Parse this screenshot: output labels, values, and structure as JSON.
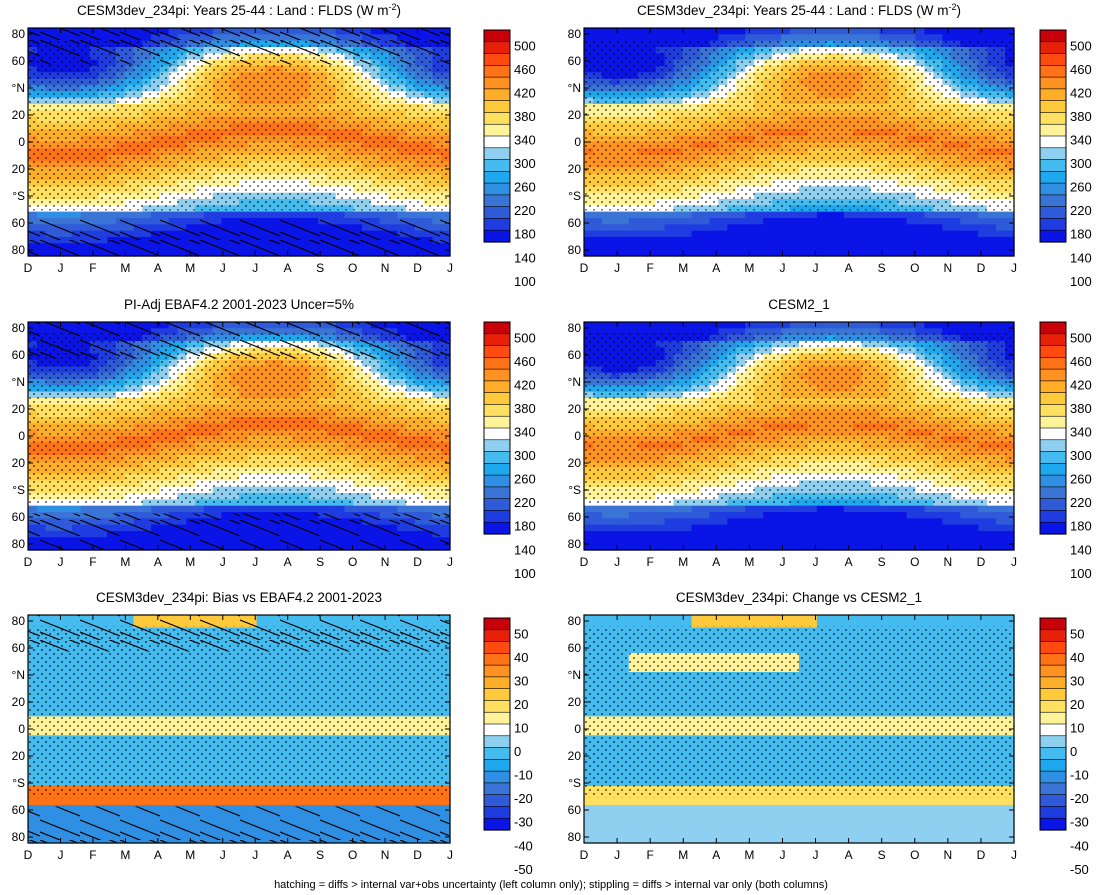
{
  "footnote": "hatching = diffs > internal var+obs uncertainty (left column only); stippling = diffs > internal var only (both columns)",
  "colors": {
    "abs_scale": [
      "#0a14e6",
      "#1f3ce0",
      "#2f5ad8",
      "#3a75d6",
      "#2f8fe3",
      "#1ea8ee",
      "#45bcef",
      "#8fd0f0",
      "#ffffff",
      "#fff39a",
      "#ffe060",
      "#ffc93c",
      "#ffae2a",
      "#ff9220",
      "#ff7316",
      "#ff4a10",
      "#e8200a",
      "#c8000a"
    ],
    "diff_scale": [
      "#0a14e6",
      "#1f3ce0",
      "#2f5ad8",
      "#3a75d6",
      "#2f8fe3",
      "#1ea8ee",
      "#45bcef",
      "#8fd0f0",
      "#ffffff",
      "#fff39a",
      "#ffe060",
      "#ffc93c",
      "#ffae2a",
      "#ff9220",
      "#ff7316",
      "#ff4a10",
      "#e8200a",
      "#c8000a"
    ]
  },
  "chart_data": [
    {
      "type": "heatmap",
      "title_main": "CESM3dev_234pi: Years 25-44 : Land : FLDS (W m",
      "title_sup": "-2",
      "title_end": ")",
      "x_ticklabels": [
        "D",
        "J",
        "F",
        "M",
        "A",
        "M",
        "J",
        "J",
        "A",
        "S",
        "O",
        "N",
        "D",
        "J"
      ],
      "y_ticklabels": [
        "80",
        "60",
        "°N",
        "20",
        "0",
        "20",
        "°S",
        "60",
        "80"
      ],
      "colorbar_ticklabels": [
        "500",
        "460",
        "420",
        "380",
        "340",
        "300",
        "260",
        "220",
        "180",
        "140",
        "100"
      ],
      "hatching": true,
      "stippling": true,
      "field": "abs"
    },
    {
      "type": "heatmap",
      "title_main": "CESM3dev_234pi: Years 25-44 : Land : FLDS (W m",
      "title_sup": "-2",
      "title_end": ")",
      "x_ticklabels": [
        "D",
        "J",
        "F",
        "M",
        "A",
        "M",
        "J",
        "J",
        "A",
        "S",
        "O",
        "N",
        "D",
        "J"
      ],
      "y_ticklabels": [
        "80",
        "60",
        "°N",
        "20",
        "0",
        "20",
        "°S",
        "60",
        "80"
      ],
      "colorbar_ticklabels": [
        "500",
        "460",
        "420",
        "380",
        "340",
        "300",
        "260",
        "220",
        "180",
        "140",
        "100"
      ],
      "hatching": false,
      "stippling": true,
      "field": "abs"
    },
    {
      "type": "heatmap",
      "title_main": "PI-Adj EBAF4.2 2001-2023 Uncer=5%",
      "title_sup": "",
      "title_end": "",
      "x_ticklabels": [
        "D",
        "J",
        "F",
        "M",
        "A",
        "M",
        "J",
        "J",
        "A",
        "S",
        "O",
        "N",
        "D",
        "J"
      ],
      "y_ticklabels": [
        "80",
        "60",
        "°N",
        "20",
        "0",
        "20",
        "°S",
        "60",
        "80"
      ],
      "colorbar_ticklabels": [
        "500",
        "460",
        "420",
        "380",
        "340",
        "300",
        "260",
        "220",
        "180",
        "140",
        "100"
      ],
      "hatching": true,
      "stippling": true,
      "field": "abs"
    },
    {
      "type": "heatmap",
      "title_main": "CESM2_1",
      "title_sup": "",
      "title_end": "",
      "x_ticklabels": [
        "D",
        "J",
        "F",
        "M",
        "A",
        "M",
        "J",
        "J",
        "A",
        "S",
        "O",
        "N",
        "D",
        "J"
      ],
      "y_ticklabels": [
        "80",
        "60",
        "°N",
        "20",
        "0",
        "20",
        "°S",
        "60",
        "80"
      ],
      "colorbar_ticklabels": [
        "500",
        "460",
        "420",
        "380",
        "340",
        "300",
        "260",
        "220",
        "180",
        "140",
        "100"
      ],
      "hatching": false,
      "stippling": true,
      "field": "abs"
    },
    {
      "type": "heatmap",
      "title_main": "CESM3dev_234pi: Bias vs EBAF4.2 2001-2023",
      "title_sup": "",
      "title_end": "",
      "x_ticklabels": [
        "D",
        "J",
        "F",
        "M",
        "A",
        "M",
        "J",
        "J",
        "A",
        "S",
        "O",
        "N",
        "D",
        "J"
      ],
      "y_ticklabels": [
        "80",
        "60",
        "°N",
        "20",
        "0",
        "20",
        "°S",
        "60",
        "80"
      ],
      "colorbar_ticklabels": [
        "50",
        "40",
        "30",
        "20",
        "10",
        "0",
        "-10",
        "-20",
        "-30",
        "-40",
        "-50"
      ],
      "hatching": true,
      "stippling": true,
      "field": "bias"
    },
    {
      "type": "heatmap",
      "title_main": "CESM3dev_234pi: Change vs CESM2_1",
      "title_sup": "",
      "title_end": "",
      "x_ticklabels": [
        "D",
        "J",
        "F",
        "M",
        "A",
        "M",
        "J",
        "J",
        "A",
        "S",
        "O",
        "N",
        "D",
        "J"
      ],
      "y_ticklabels": [
        "80",
        "60",
        "°N",
        "20",
        "0",
        "20",
        "°S",
        "60",
        "80"
      ],
      "colorbar_ticklabels": [
        "50",
        "40",
        "30",
        "20",
        "10",
        "0",
        "-10",
        "-20",
        "-30",
        "-40",
        "-50"
      ],
      "hatching": false,
      "stippling": true,
      "field": "change"
    }
  ]
}
